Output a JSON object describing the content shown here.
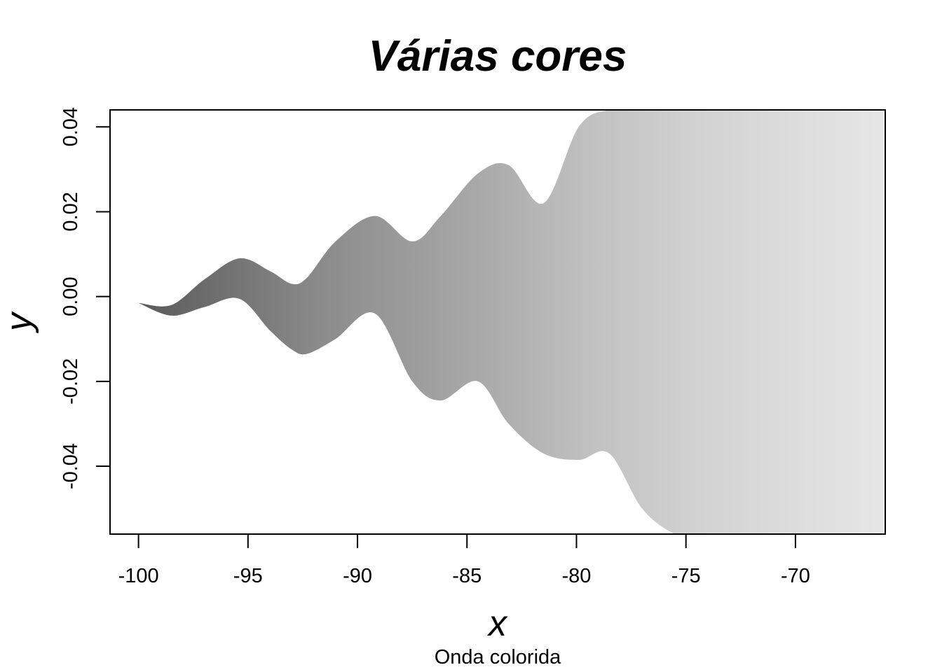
{
  "chart_data": {
    "type": "area",
    "title": "Várias cores",
    "subtitle": "Onda colorida",
    "xlabel": "x",
    "ylabel": "y",
    "xlim": [
      -101.3,
      -65.9
    ],
    "ylim": [
      -0.056,
      0.044
    ],
    "x_ticks": [
      -100,
      -95,
      -90,
      -85,
      -80,
      -75,
      -70
    ],
    "x_tick_labels": [
      "-100",
      "-95",
      "-90",
      "-85",
      "-80",
      "-75",
      "-70"
    ],
    "y_ticks": [
      -0.04,
      -0.02,
      0.0,
      0.02,
      0.04
    ],
    "y_tick_labels": [
      "-0.04",
      "-0.02",
      "0.00",
      "0.02",
      "0.04"
    ],
    "grid": false,
    "legend": "none",
    "color_scale": [
      "#5a5a5a",
      "#e6e6e6"
    ],
    "series": [
      {
        "x": [
          -100,
          -98.5,
          -97,
          -95.4,
          -94,
          -93,
          -92.3,
          -91,
          -89.2,
          -87.5,
          -86.2,
          -84.5,
          -83.1,
          -81.5,
          -79.9,
          -78.5,
          -77,
          -75.5,
          -74.5,
          -72,
          -69,
          -66
        ],
        "upper": [
          -0.0015,
          -0.002,
          0.004,
          0.009,
          0.006,
          0.003,
          0.0045,
          0.013,
          0.019,
          0.013,
          0.019,
          0.029,
          0.031,
          0.022,
          0.04,
          0.044,
          0.044,
          0.044,
          0.044,
          0.044,
          0.044,
          0.044
        ],
        "lower": [
          -0.0015,
          -0.0045,
          -0.0025,
          -0.0005,
          -0.008,
          -0.0125,
          -0.0135,
          -0.01,
          -0.004,
          -0.02,
          -0.0245,
          -0.02,
          -0.03,
          -0.037,
          -0.0385,
          -0.037,
          -0.05,
          -0.056,
          -0.056,
          -0.056,
          -0.056,
          -0.056
        ]
      }
    ]
  }
}
